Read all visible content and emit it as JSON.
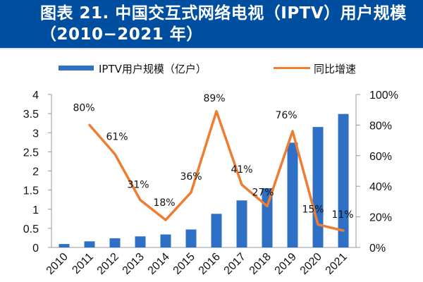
{
  "header": {
    "title": "图表 21. 中国交互式网络电视（IPTV）用户规模（2010−2021 年）"
  },
  "colors": {
    "header_bg": "#004e9f",
    "bar": "#2e70c5",
    "line": "#ed7d31",
    "axis": "#999999"
  },
  "chart_data": {
    "type": "bar+line",
    "title": "图表 21. 中国交互式网络电视（IPTV）用户规模（2010−2021 年）",
    "categories": [
      "2010",
      "2011",
      "2012",
      "2013",
      "2014",
      "2015",
      "2016",
      "2017",
      "2018",
      "2019",
      "2020",
      "2021"
    ],
    "series": [
      {
        "name": "IPTV用户规模（亿户）",
        "type": "bar",
        "axis": "left",
        "values": [
          0.09,
          0.16,
          0.24,
          0.29,
          0.34,
          0.47,
          0.88,
          1.23,
          1.55,
          2.74,
          3.15,
          3.49
        ]
      },
      {
        "name": "同比增速",
        "type": "line",
        "axis": "right",
        "values": [
          null,
          80,
          61,
          31,
          18,
          36,
          89,
          41,
          27,
          76,
          15,
          11
        ],
        "labels": [
          "",
          "80%",
          "61%",
          "31%",
          "18%",
          "36%",
          "89%",
          "41%",
          "27%",
          "76%",
          "15%",
          "11%"
        ]
      }
    ],
    "y_left": {
      "min": 0,
      "max": 4,
      "ticks": [
        "0",
        "0.5",
        "1",
        "1.5",
        "2",
        "2.5",
        "3",
        "3.5",
        "4"
      ]
    },
    "y_right": {
      "min": 0,
      "max": 100,
      "ticks": [
        "0%",
        "20%",
        "40%",
        "60%",
        "80%",
        "100%"
      ]
    },
    "xlabel": "",
    "ylabel": "",
    "grid": false,
    "legend_position": "top"
  }
}
